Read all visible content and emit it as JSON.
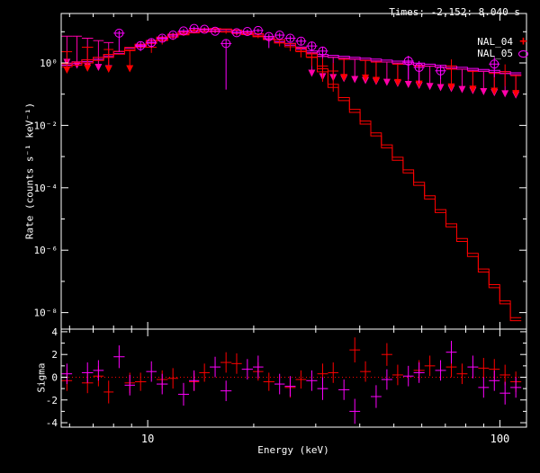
{
  "window": {
    "background": "#000000",
    "frame_color": "#ffffff"
  },
  "header": {
    "times_label": "Times: -2.152: 8.040 s"
  },
  "legend": {
    "items": [
      {
        "label": "NAL_04",
        "marker": "plus",
        "color": "#ff0000"
      },
      {
        "label": "NAL_05",
        "marker": "circle",
        "color": "#ff00ff"
      }
    ]
  },
  "chart_data": {
    "type": "line",
    "subtype": "count-spectrum-with-residuals",
    "title": "",
    "x_axis": {
      "label": "Energy (keV)",
      "scale": "log",
      "range_kev": [
        5.68,
        119
      ],
      "major_ticks": [
        10,
        100
      ],
      "major_tick_labels": [
        "10",
        "100"
      ],
      "minor_ticks": [
        6,
        7,
        8,
        9,
        20,
        30,
        40,
        50,
        60,
        70,
        80,
        90
      ]
    },
    "rate_axis": {
      "label": "Rate (counts s⁻¹ keV⁻¹)",
      "scale": "log",
      "range_log10": [
        -8.53,
        1.585
      ],
      "labeled_exponents": [
        0,
        -2,
        -4,
        -6,
        -8
      ],
      "tick_labels": [
        "10⁰",
        "10⁻²",
        "10⁻⁴",
        "10⁻⁶",
        "10⁻⁸"
      ]
    },
    "sigma_axis": {
      "label": "Sigma",
      "range": [
        -4.39,
        4.23
      ],
      "major_ticks": [
        -4,
        -2,
        0,
        2,
        4
      ],
      "major_tick_labels": [
        "-4",
        "-2",
        "0",
        "2",
        "4"
      ],
      "zero_line_color": "#ff0000"
    },
    "bin_edges_kev": [
      5.7,
      6.1,
      6.5,
      7.0,
      7.5,
      8.0,
      8.6,
      9.2,
      9.9,
      10.6,
      11.4,
      12.2,
      13.1,
      14.0,
      15.0,
      16.1,
      17.3,
      18.5,
      19.9,
      21.3,
      22.9,
      24.5,
      26.3,
      28.2,
      30.3,
      32.5,
      34.8,
      37.4,
      40.1,
      43.0,
      46.1,
      49.5,
      53.1,
      56.9,
      61.1,
      65.5,
      70.3,
      75.4,
      80.9,
      86.8,
      93.1,
      99.9,
      107.1,
      115.0
    ],
    "series": [
      {
        "name": "NAL_04",
        "color": "#ff0000",
        "arrow_color": "#ff0000",
        "marker": "plus",
        "model_values": [
          0.75,
          0.85,
          1.0,
          1.2,
          1.5,
          1.9,
          2.5,
          3.2,
          4.2,
          5.4,
          6.7,
          8.0,
          9.2,
          9.9,
          10.1,
          9.8,
          9.1,
          8.1,
          6.9,
          5.6,
          4.4,
          3.3,
          2.4,
          1.55,
          0.52,
          0.165,
          0.062,
          0.026,
          0.011,
          0.0046,
          0.0019,
          0.00076,
          0.0003,
          0.00012,
          4.4e-05,
          1.6e-05,
          5.6e-06,
          1.9e-06,
          6.3e-07,
          2e-07,
          6.3e-08,
          1.9e-08,
          5.5e-09
        ],
        "data_hist_factor": 1.25,
        "points": [
          [
            10.25,
            3.2,
            2.1,
            4.3
          ],
          [
            11.0,
            5.2,
            3.9,
            6.4
          ],
          [
            11.8,
            6.8,
            5.4,
            8.2
          ],
          [
            12.65,
            8.8,
            7.3,
            10.4
          ],
          [
            13.55,
            10.8,
            9.2,
            12.5
          ],
          [
            14.5,
            11.5,
            9.9,
            13.2
          ],
          [
            15.55,
            10.8,
            9.3,
            12.4
          ],
          [
            16.7,
            10.0,
            8.6,
            11.5
          ],
          [
            17.9,
            8.8,
            7.5,
            10.2
          ],
          [
            19.2,
            9.4,
            8.1,
            10.8
          ],
          [
            20.6,
            7.4,
            6.2,
            8.7
          ],
          [
            22.1,
            5.6,
            4.5,
            6.8
          ],
          [
            23.7,
            4.4,
            3.4,
            5.4
          ],
          [
            25.4,
            3.3,
            2.4,
            4.2
          ],
          [
            27.2,
            2.3,
            1.5,
            3.1
          ],
          [
            29.2,
            1.5,
            0.8,
            2.2
          ],
          [
            31.4,
            0.8,
            0.25,
            1.35
          ],
          [
            33.6,
            0.55,
            0.12,
            1.0
          ],
          [
            74.0,
            0.8,
            0.3,
            1.3
          ],
          [
            104.0,
            0.52,
            0.18,
            0.9
          ]
        ],
        "upper_limits": [
          [
            5.9,
            2.3,
            0.45
          ],
          [
            6.75,
            3.2,
            0.52
          ],
          [
            7.75,
            2.7,
            0.48
          ],
          [
            8.9,
            2.6,
            0.5
          ],
          [
            36.1,
            1.3,
            0.26
          ],
          [
            41.5,
            1.2,
            0.25
          ],
          [
            44.5,
            1.06,
            0.21
          ],
          [
            51.3,
            0.91,
            0.18
          ],
          [
            59.0,
            0.78,
            0.16
          ],
          [
            72.9,
            0.63,
            0.13
          ],
          [
            83.9,
            0.53,
            0.11
          ],
          [
            96.5,
            0.46,
            0.095
          ],
          [
            111.0,
            0.39,
            0.08
          ]
        ],
        "model_upper_limit_bins": [],
        "model_upper_limit_tip_factor": 0.17,
        "sigma_points": [
          [
            5.9,
            -0.3,
            0.9
          ],
          [
            6.55,
            -0.5,
            0.9
          ],
          [
            7.25,
            0.1,
            0.9
          ],
          [
            8.0,
            -1.3,
            1.0
          ],
          [
            8.9,
            -0.5,
            0.9
          ],
          [
            9.9,
            -0.4,
            0.8
          ],
          [
            11.0,
            -0.2,
            0.8
          ],
          [
            12.2,
            -0.1,
            0.9
          ],
          [
            13.55,
            -0.4,
            0.8
          ],
          [
            15.0,
            0.4,
            0.8
          ],
          [
            16.7,
            1.3,
            0.9
          ],
          [
            18.5,
            1.2,
            0.9
          ],
          [
            20.6,
            0.5,
            0.8
          ],
          [
            22.9,
            -0.4,
            0.8
          ],
          [
            25.4,
            -0.9,
            0.9
          ],
          [
            28.2,
            -0.2,
            0.8
          ],
          [
            31.4,
            0.3,
            0.9
          ],
          [
            34.8,
            0.4,
            0.9
          ],
          [
            38.7,
            2.4,
            1.1
          ],
          [
            43.0,
            0.5,
            0.9
          ],
          [
            47.8,
            2.0,
            1.0
          ],
          [
            53.1,
            0.2,
            0.9
          ],
          [
            59.0,
            0.6,
            0.9
          ],
          [
            65.5,
            1.0,
            0.9
          ],
          [
            72.9,
            0.9,
            0.9
          ],
          [
            80.9,
            0.3,
            0.9
          ],
          [
            89.9,
            0.8,
            0.9
          ],
          [
            99.9,
            0.7,
            0.9
          ],
          [
            107.1,
            0.2,
            0.9
          ],
          [
            113.0,
            -0.4,
            0.9
          ]
        ]
      },
      {
        "name": "NAL_05",
        "color": "#ff00ff",
        "arrow_color": "#ff00aa",
        "marker": "circle-plus",
        "model_values": [
          0.85,
          0.95,
          1.1,
          1.3,
          1.6,
          2.0,
          2.6,
          3.4,
          4.4,
          5.6,
          7.0,
          8.4,
          9.6,
          10.3,
          10.5,
          10.2,
          9.5,
          8.5,
          7.3,
          6.0,
          4.8,
          3.7,
          2.8,
          2.1,
          1.62,
          1.52,
          1.42,
          1.32,
          1.23,
          1.15,
          1.07,
          0.99,
          0.92,
          0.85,
          0.79,
          0.73,
          0.68,
          0.63,
          0.58,
          0.54,
          0.5,
          0.46,
          0.42
        ],
        "data_hist_factor": 1.15,
        "points": [
          [
            8.3,
            9.0,
            2.3,
            10.8
          ],
          [
            9.55,
            3.6,
            2.4,
            4.9
          ],
          [
            10.25,
            4.5,
            3.1,
            6.0
          ],
          [
            11.0,
            6.2,
            4.8,
            7.7
          ],
          [
            11.8,
            7.8,
            6.3,
            9.4
          ],
          [
            12.65,
            10.6,
            9.0,
            12.3
          ],
          [
            13.55,
            12.8,
            11.0,
            14.6
          ],
          [
            14.5,
            12.0,
            10.3,
            13.8
          ],
          [
            15.55,
            10.4,
            8.9,
            12.0
          ],
          [
            16.7,
            4.2,
            0.14,
            5.6
          ],
          [
            17.9,
            9.3,
            7.9,
            10.8
          ],
          [
            19.2,
            10.2,
            8.8,
            11.7
          ],
          [
            20.6,
            11.0,
            9.5,
            12.6
          ],
          [
            22.1,
            7.0,
            3.0,
            8.5
          ],
          [
            23.7,
            7.8,
            6.4,
            9.2
          ],
          [
            25.4,
            6.2,
            4.9,
            7.5
          ],
          [
            27.2,
            5.0,
            3.8,
            6.2
          ],
          [
            29.2,
            3.5,
            2.4,
            4.6
          ],
          [
            31.4,
            2.4,
            1.5,
            3.3
          ],
          [
            55.0,
            1.15,
            0.3,
            1.7
          ],
          [
            59.0,
            0.72,
            0.22,
            1.15
          ],
          [
            67.9,
            0.56,
            0.3,
            0.85
          ],
          [
            96.5,
            0.92,
            0.35,
            1.55
          ]
        ],
        "upper_limits": [
          [
            5.9,
            7.2,
            0.8
          ],
          [
            6.3,
            7.2,
            0.65
          ],
          [
            6.75,
            6.2,
            0.6
          ],
          [
            7.25,
            5.2,
            0.55
          ],
          [
            7.75,
            4.5,
            0.5
          ]
        ],
        "model_upper_limit_bins": [
          23,
          24,
          25,
          26,
          27,
          28,
          29,
          30,
          31,
          32,
          33,
          34,
          35,
          36,
          37,
          38,
          39,
          40,
          41,
          42
        ],
        "model_upper_limit_tip_factor": 0.17,
        "sigma_points": [
          [
            5.9,
            0.3,
            0.9
          ],
          [
            6.55,
            0.4,
            0.9
          ],
          [
            7.25,
            0.6,
            0.9
          ],
          [
            8.3,
            1.8,
            1.0
          ],
          [
            9.2,
            -0.7,
            0.9
          ],
          [
            10.25,
            0.5,
            0.9
          ],
          [
            11.4,
            -0.6,
            0.9
          ],
          [
            12.65,
            -1.5,
            1.0
          ],
          [
            14.0,
            -0.3,
            0.9
          ],
          [
            15.55,
            0.9,
            0.9
          ],
          [
            17.3,
            -1.2,
            0.9
          ],
          [
            19.2,
            0.7,
            0.9
          ],
          [
            21.3,
            0.9,
            1.0
          ],
          [
            23.7,
            -0.6,
            0.9
          ],
          [
            26.3,
            -0.8,
            0.9
          ],
          [
            29.2,
            -0.3,
            0.9
          ],
          [
            32.5,
            -1.0,
            1.0
          ],
          [
            36.1,
            -1.1,
            0.9
          ],
          [
            40.1,
            -3.0,
            1.1
          ],
          [
            44.5,
            -1.7,
            1.0
          ],
          [
            49.5,
            -0.2,
            0.9
          ],
          [
            55.0,
            0.1,
            0.9
          ],
          [
            61.1,
            0.4,
            0.9
          ],
          [
            67.9,
            0.6,
            0.9
          ],
          [
            75.4,
            2.2,
            1.0
          ],
          [
            83.9,
            0.9,
            1.0
          ],
          [
            89.9,
            -0.9,
            0.9
          ],
          [
            96.5,
            -0.3,
            0.9
          ],
          [
            103.5,
            -1.4,
            1.0
          ],
          [
            111.0,
            -0.9,
            0.9
          ]
        ]
      }
    ]
  }
}
